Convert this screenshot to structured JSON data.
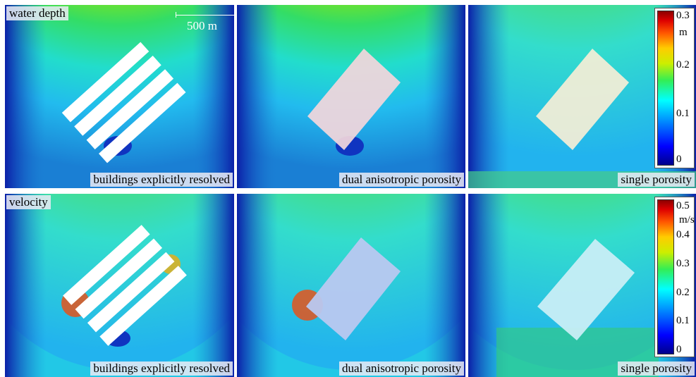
{
  "panels": {
    "p1": {
      "label": "water depth"
    },
    "p2": {
      "label": "buildings explicitly resolved"
    },
    "p3": {
      "label": "dual anisotropic porosity"
    },
    "p4": {
      "label": "single porosity"
    },
    "p5": {
      "label": "velocity"
    },
    "p6": {
      "label": "buildings explicitly resolved"
    },
    "p7": {
      "label": "dual anisotropic porosity"
    },
    "p8": {
      "label": "single porosity"
    }
  },
  "scalebar": {
    "label": "500 m"
  },
  "colorbar_depth": {
    "unit": "m",
    "ticks": [
      "0.3",
      "0.2",
      "0.1",
      "0"
    ]
  },
  "colorbar_velocity": {
    "unit": "m/s",
    "ticks": [
      "0.5",
      "0.4",
      "0.3",
      "0.2",
      "0.1",
      "0"
    ]
  },
  "colors": {
    "jet_low": "#00008b",
    "jet_mid": "#00ffff",
    "jet_high": "#8b0000"
  }
}
